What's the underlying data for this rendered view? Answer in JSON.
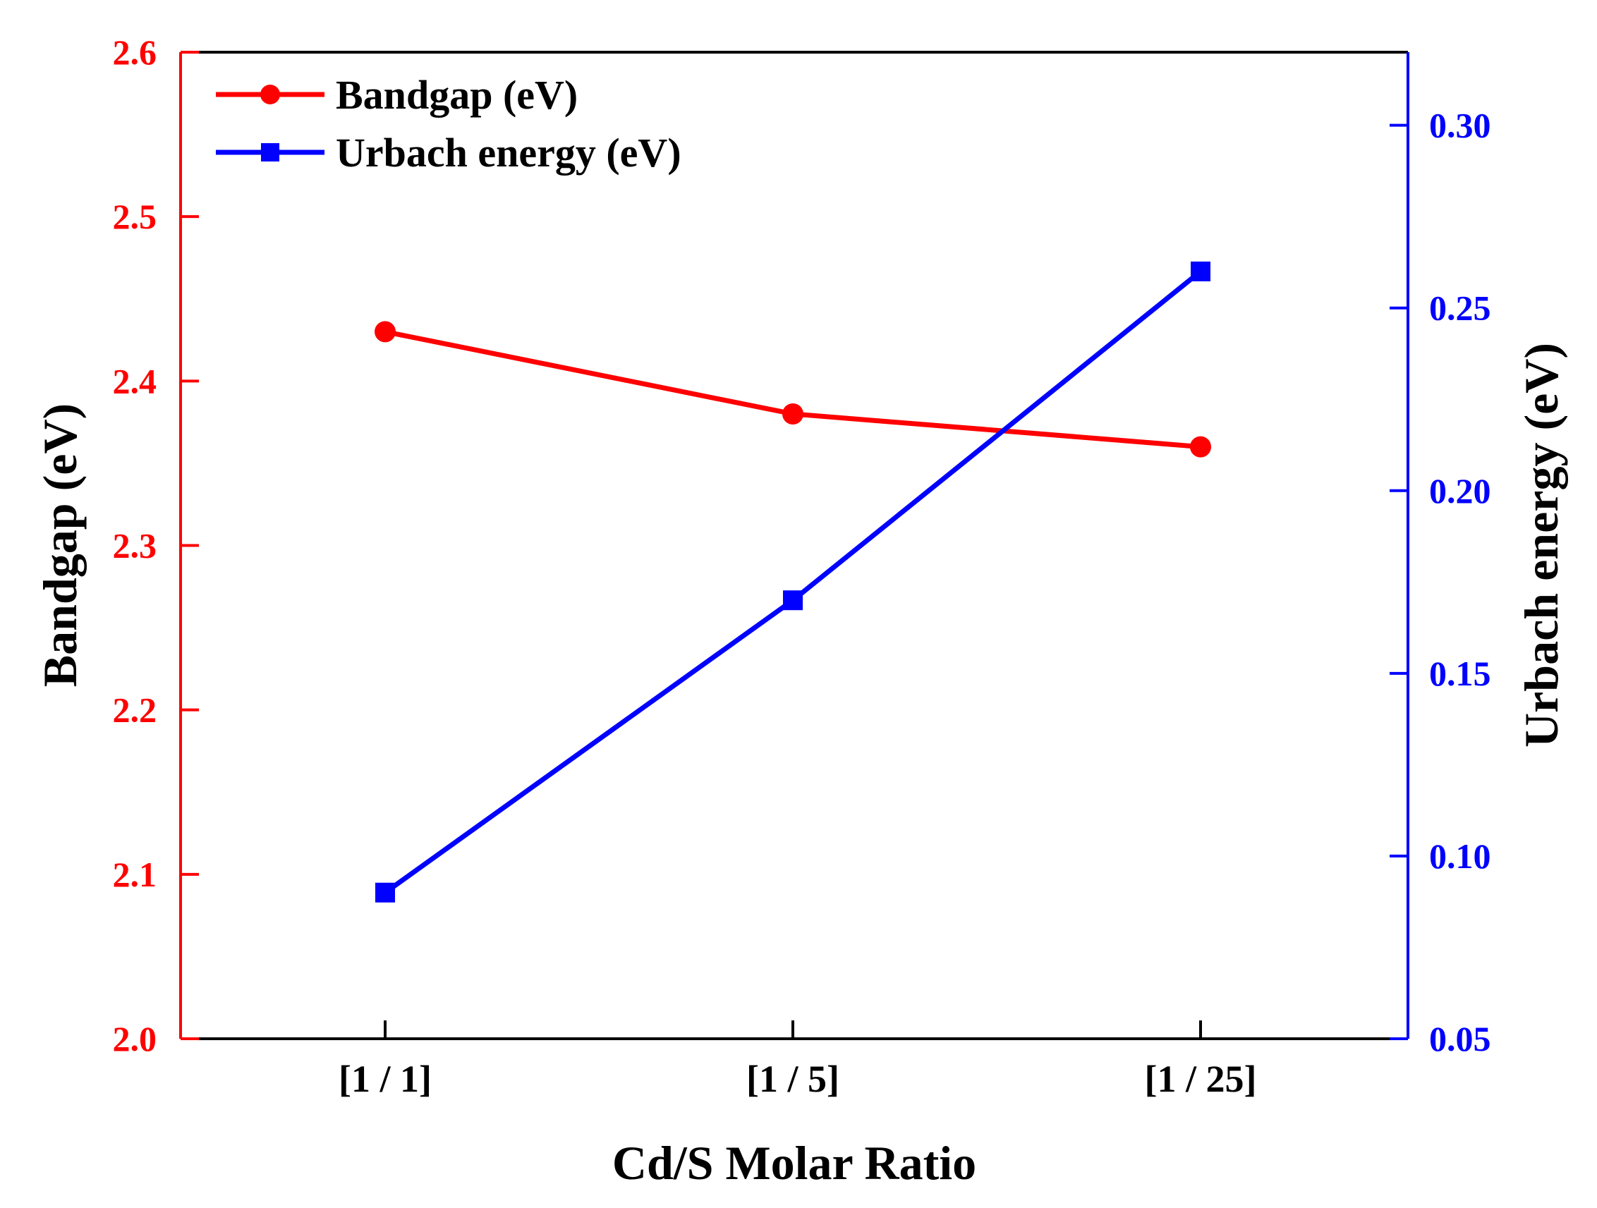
{
  "chart_data": {
    "type": "line",
    "title": "",
    "xlabel": "Cd/S Molar Ratio",
    "categories": [
      "[1 / 1]",
      "[1 / 5]",
      "[1 / 25]"
    ],
    "y_left": {
      "label": "Bandgap (eV)",
      "range": [
        2.0,
        2.6
      ],
      "ticks": [
        "2.0",
        "2.1",
        "2.2",
        "2.3",
        "2.4",
        "2.5",
        "2.6"
      ],
      "tick_values": [
        2.0,
        2.1,
        2.2,
        2.3,
        2.4,
        2.5,
        2.6
      ],
      "color": "#ff0000"
    },
    "y_right": {
      "label": "Urbach energy (eV)",
      "range": [
        0.05,
        0.32
      ],
      "ticks": [
        "0.05",
        "0.10",
        "0.15",
        "0.20",
        "0.25",
        "0.30"
      ],
      "tick_values": [
        0.05,
        0.1,
        0.15,
        0.2,
        0.25,
        0.3
      ],
      "color": "#0000ff"
    },
    "series": [
      {
        "name": "Bandgap (eV)",
        "axis": "left",
        "marker": "circle",
        "color": "#ff0000",
        "values": [
          2.43,
          2.38,
          2.36
        ]
      },
      {
        "name": "Urbach energy (eV)",
        "axis": "right",
        "marker": "square",
        "color": "#0000ff",
        "values": [
          0.09,
          0.17,
          0.26
        ]
      }
    ],
    "legend_position": "top-left",
    "grid": false
  }
}
